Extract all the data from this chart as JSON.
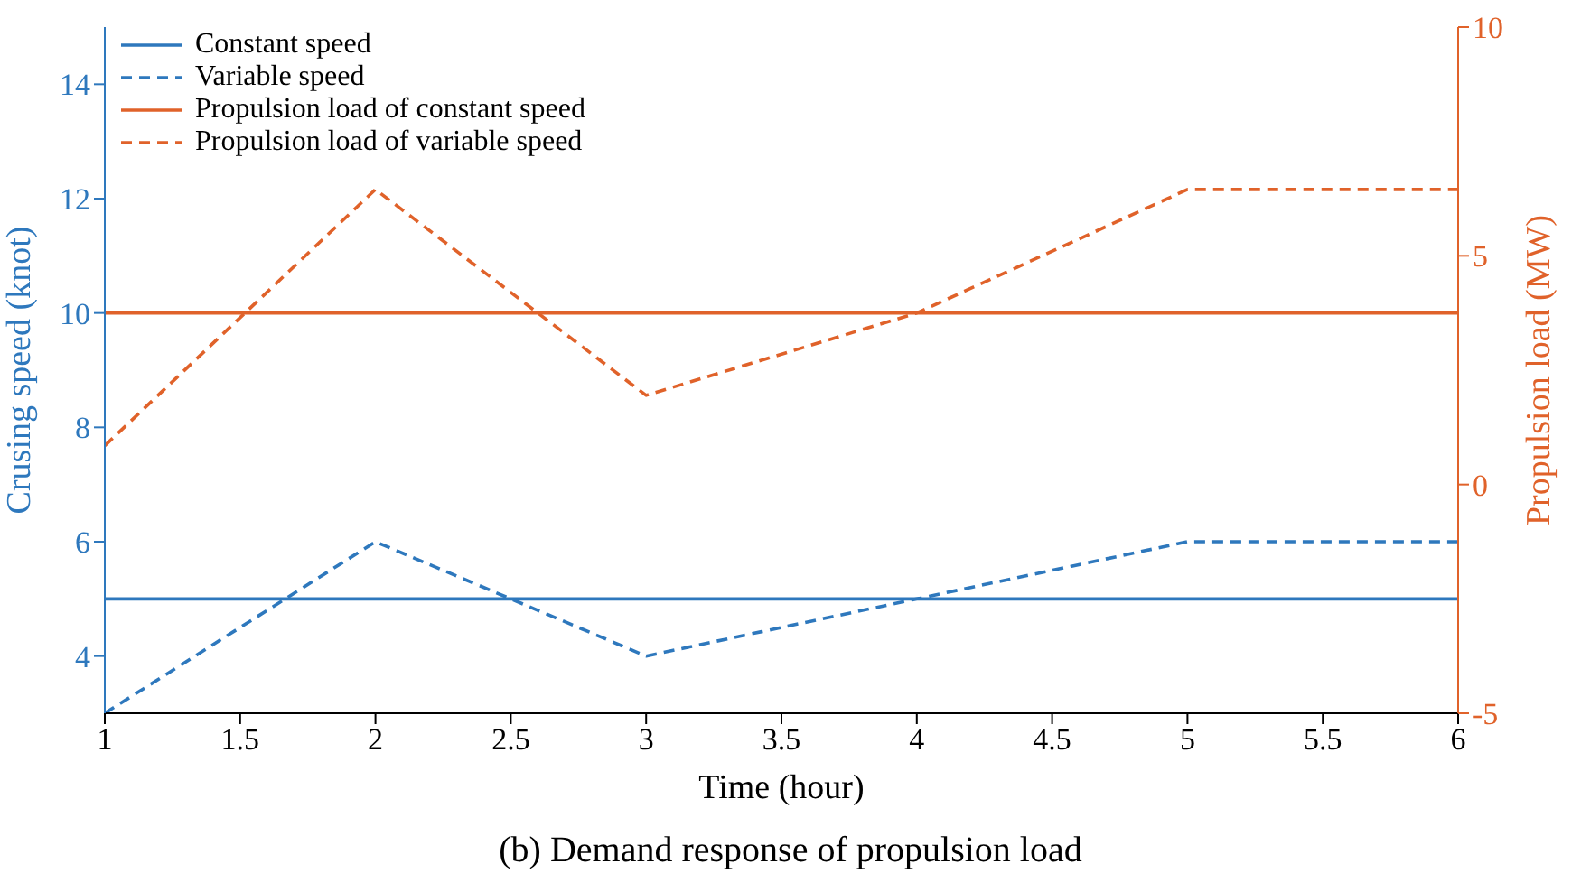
{
  "chart_data": {
    "type": "line",
    "title": "(b) Demand response of propulsion load",
    "xlabel": "Time (hour)",
    "ylabel": "Crusing speed (knot)",
    "y2label": "Propulsion load (MW)",
    "x": [
      1,
      2,
      3,
      4,
      5,
      6
    ],
    "series": [
      {
        "name": "Constant speed",
        "color": "#2e78bd",
        "values": [
          5,
          5,
          5,
          5,
          5,
          5
        ],
        "line_style": "solid"
      },
      {
        "name": "Variable speed",
        "color": "#2e78bd",
        "values": [
          3,
          6,
          4,
          5,
          6,
          6
        ],
        "line_style": "dashed"
      },
      {
        "name": "Propulsion load of constant speed",
        "color": "#e0622a",
        "values": [
          3.75,
          3.75,
          3.75,
          3.75,
          3.75,
          3.75
        ],
        "line_style": "solid",
        "axis": "y2"
      },
      {
        "name": "Propulsion load of variable speed",
        "color": "#e0622a",
        "values": [
          0.85,
          6.45,
          1.95,
          3.75,
          6.45,
          6.45
        ],
        "line_style": "dashed",
        "axis": "y2"
      }
    ],
    "xlim": [
      1,
      6
    ],
    "xticks": [
      1,
      1.5,
      2,
      2.5,
      3,
      3.5,
      4,
      4.5,
      5,
      5.5,
      6
    ],
    "ylim": [
      3,
      15
    ],
    "yticks": [
      4,
      6,
      8,
      10,
      12,
      14
    ],
    "y2lim": [
      -5,
      10
    ],
    "y2ticks": [
      -5,
      0,
      5,
      10
    ],
    "grid": false,
    "legend": "top left",
    "marker": "none"
  }
}
